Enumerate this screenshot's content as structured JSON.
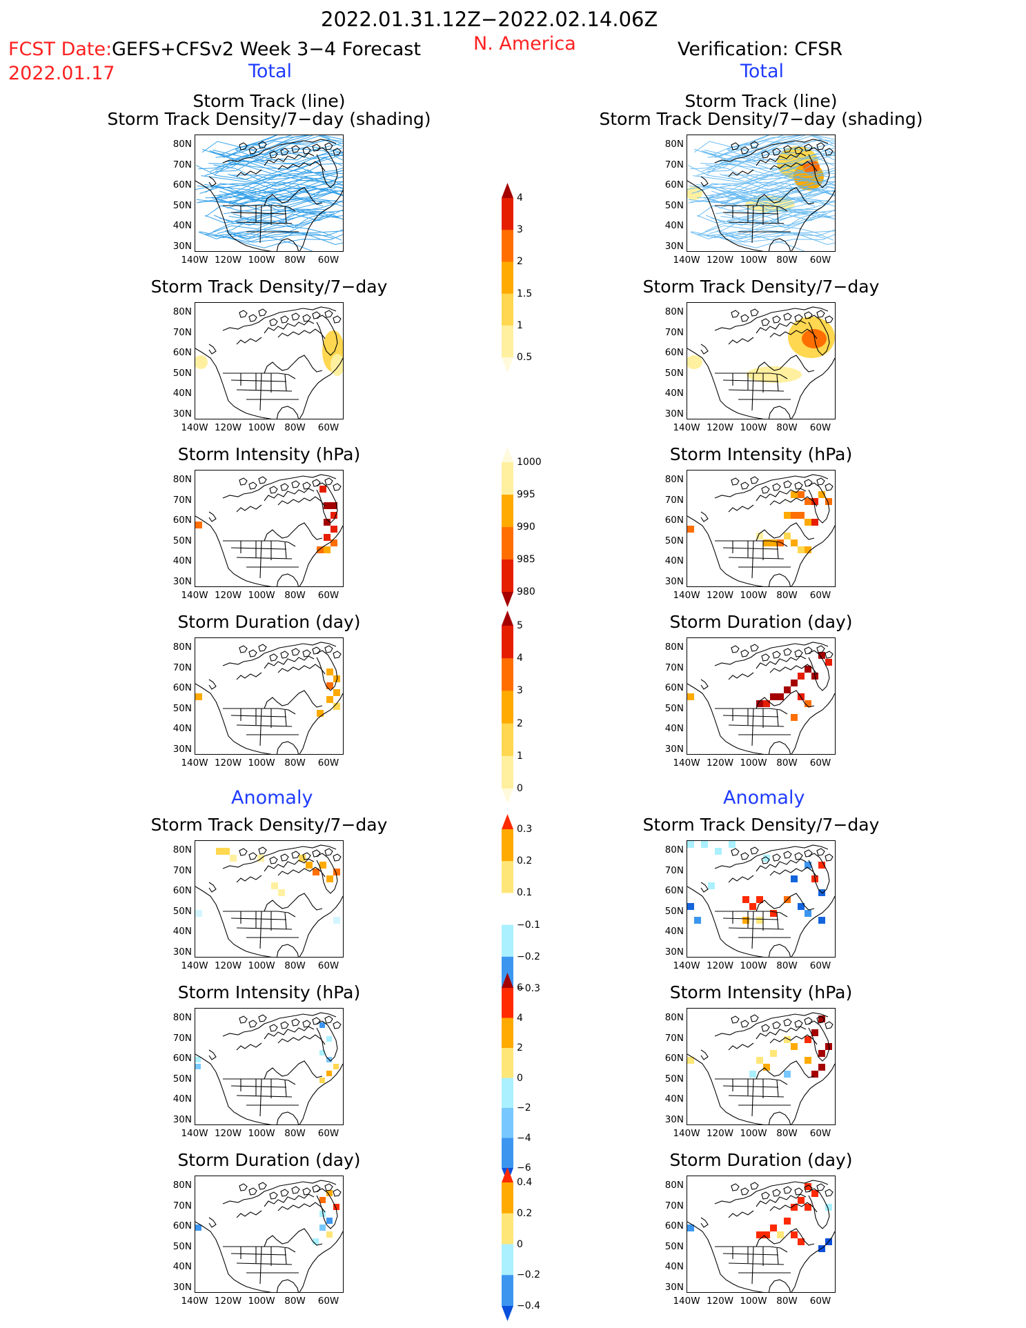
{
  "header": {
    "date_range": "2022.01.31.12Z−2022.02.14.06Z",
    "fcst_date_label": "FCST Date:",
    "fcst_date": "2022.01.17",
    "forecast_title": "GEFS+CFSv2 Week 3−4 Forecast",
    "region": "N. America",
    "verification": "Verification: CFSR"
  },
  "sections": {
    "total_left": "Total",
    "total_right": "Total",
    "anomaly_left": "Anomaly",
    "anomaly_right": "Anomaly"
  },
  "axes": {
    "lat_labels": [
      "80N",
      "70N",
      "60N",
      "50N",
      "40N",
      "30N"
    ],
    "lon_labels": [
      "140W",
      "120W",
      "100W",
      "80W",
      "60W"
    ]
  },
  "panels": [
    {
      "title1": "Storm Track (line)",
      "title2": "Storm Track Density/7−day (shading)"
    },
    {
      "title1": "Storm Track (line)",
      "title2": "Storm Track Density/7−day (shading)"
    },
    {
      "title1": "Storm Track Density/7−day"
    },
    {
      "title1": "Storm Track Density/7−day"
    },
    {
      "title1": "Storm Intensity (hPa)"
    },
    {
      "title1": "Storm Intensity (hPa)"
    },
    {
      "title1": "Storm Duration (day)"
    },
    {
      "title1": "Storm Duration (day)"
    },
    {
      "title1": "Storm Track Density/7−day"
    },
    {
      "title1": "Storm Track Density/7−day"
    },
    {
      "title1": "Storm Intensity (hPa)"
    },
    {
      "title1": "Storm Intensity (hPa)"
    },
    {
      "title1": "Storm Duration (day)"
    },
    {
      "title1": "Storm Duration (day)"
    }
  ],
  "colorbars": [
    {
      "name": "density-total",
      "labels": [
        "4",
        "3",
        "2",
        "1.5",
        "1",
        "0.5"
      ],
      "colors": [
        "#a50000",
        "#e61e00",
        "#ff6e00",
        "#ffaa00",
        "#ffd750",
        "#fff0a0",
        "#fffadc"
      ]
    },
    {
      "name": "intensity-total",
      "labels": [
        "1000",
        "995",
        "990",
        "985",
        "980"
      ],
      "colors": [
        "#fffadc",
        "#fff0a0",
        "#ffaa00",
        "#ff6e00",
        "#e61e00",
        "#a50000"
      ]
    },
    {
      "name": "duration-total",
      "labels": [
        "5",
        "4",
        "3",
        "2",
        "1",
        "0"
      ],
      "colors": [
        "#a50000",
        "#e61e00",
        "#ff6e00",
        "#ffaa00",
        "#ffd750",
        "#fff0a0",
        "#fffadc"
      ]
    },
    {
      "name": "density-anomaly",
      "labels": [
        "0.3",
        "0.2",
        "0.1",
        "−0.1",
        "−0.2",
        "−0.3"
      ],
      "colors": [
        "#ff2a00",
        "#ffaa00",
        "#ffe678",
        "#ffffff",
        "#aaf0ff",
        "#3c96f0",
        "#0a50dc"
      ]
    },
    {
      "name": "intensity-anomaly",
      "labels": [
        "6",
        "4",
        "2",
        "0",
        "−2",
        "−4",
        "−6"
      ],
      "colors": [
        "#a50000",
        "#ff2a00",
        "#ffaa00",
        "#ffe678",
        "#aaf0ff",
        "#78c8ff",
        "#3c96f0",
        "#0a50dc"
      ]
    },
    {
      "name": "duration-anomaly",
      "labels": [
        "0.4",
        "0.2",
        "0",
        "−0.2",
        "−0.4"
      ],
      "colors": [
        "#ff2a00",
        "#ffaa00",
        "#ffe678",
        "#aaf0ff",
        "#3c96f0",
        "#0a50dc"
      ]
    }
  ],
  "colors": {
    "track_line": "#1e96e6",
    "header_red": "#ff2020",
    "header_blue": "#1f3cff"
  }
}
